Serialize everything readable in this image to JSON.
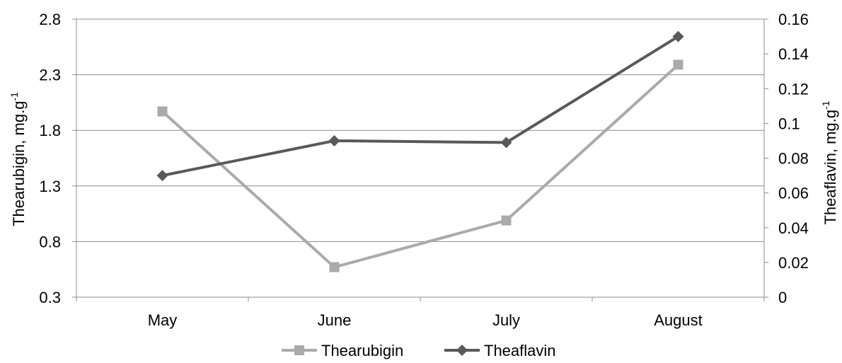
{
  "chart_data": {
    "type": "line",
    "categories": [
      "May",
      "June",
      "July",
      "August"
    ],
    "series": [
      {
        "name": "Thearubigin",
        "axis": "left",
        "values": [
          1.97,
          0.57,
          0.99,
          2.39
        ],
        "color": "#aaaaaa",
        "marker": "square"
      },
      {
        "name": "Theaflavin",
        "axis": "right",
        "values": [
          0.07,
          0.09,
          0.089,
          0.15
        ],
        "color": "#595959",
        "marker": "diamond"
      }
    ],
    "y_left": {
      "label": "Thearubigin, mg.g",
      "label_sup": "-1",
      "ylim": [
        0.3,
        2.8
      ],
      "ticks": [
        "0.3",
        "0.8",
        "1.3",
        "1.8",
        "2.3",
        "2.8"
      ],
      "tick_values": [
        0.3,
        0.8,
        1.3,
        1.8,
        2.3,
        2.8
      ]
    },
    "y_right": {
      "label": "Theaflavin, mg.g",
      "label_sup": "-1",
      "ylim": [
        0,
        0.16
      ],
      "ticks": [
        "0",
        "0.02",
        "0.04",
        "0.06",
        "0.08",
        "0.1",
        "0.12",
        "0.14",
        "0.16"
      ],
      "tick_values": [
        0,
        0.02,
        0.04,
        0.06,
        0.08,
        0.1,
        0.12,
        0.14,
        0.16
      ]
    },
    "grid": true,
    "grid_color": "#8c8c8c",
    "legend": "bottom"
  }
}
